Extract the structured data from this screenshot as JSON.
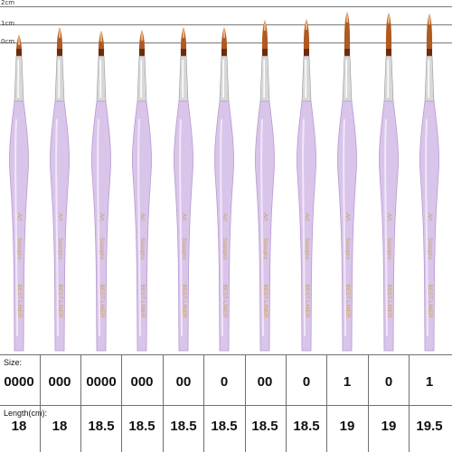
{
  "scale": {
    "labels": [
      "2cm",
      "1cm",
      "0cm"
    ]
  },
  "brush_colors": {
    "handle": "#d9c4ea",
    "handle_shadow": "#b89ad0",
    "ferrule": "#d8d8d8",
    "bristle_dark": "#6b2b10",
    "bristle_mid": "#b05a22",
    "bristle_tip": "#e9b07a"
  },
  "handle_print": {
    "grade": "Art",
    "brand": "Sosopro",
    "model": "BEST-LINER"
  },
  "table": {
    "size_label": "Size:",
    "length_label": "Length(cm):",
    "sizes": [
      "0000",
      "000",
      "0000",
      "000",
      "00",
      "0",
      "00",
      "0",
      "1",
      "0",
      "1"
    ],
    "lengths": [
      "18",
      "18",
      "18.5",
      "18.5",
      "18.5",
      "18.5",
      "18.5",
      "18.5",
      "19",
      "19",
      "19.5"
    ]
  }
}
